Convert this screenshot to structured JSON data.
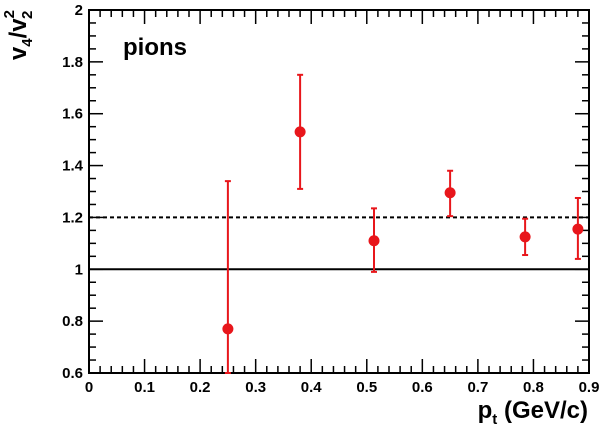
{
  "chart_data": {
    "type": "scatter",
    "annotation": "pions",
    "xlabel": {
      "main": "p",
      "sub": "t",
      "rest": " (GeV/c)"
    },
    "ylabel": {
      "a": "v",
      "a_sub": "4",
      "slash": "/",
      "b": "v",
      "b_sub": "2",
      "b_sup": "2"
    },
    "xlim": [
      0,
      0.9
    ],
    "ylim": [
      0.6,
      2.0
    ],
    "x_ticks": [
      {
        "value": 0,
        "label": "0"
      },
      {
        "value": 0.1,
        "label": "0.1"
      },
      {
        "value": 0.2,
        "label": "0.2"
      },
      {
        "value": 0.3,
        "label": "0.3"
      },
      {
        "value": 0.4,
        "label": "0.4"
      },
      {
        "value": 0.5,
        "label": "0.5"
      },
      {
        "value": 0.6,
        "label": "0.6"
      },
      {
        "value": 0.7,
        "label": "0.7"
      },
      {
        "value": 0.8,
        "label": "0.8"
      },
      {
        "value": 0.9,
        "label": "0.9"
      }
    ],
    "y_ticks": [
      {
        "value": 0.6,
        "label": "0.6"
      },
      {
        "value": 0.8,
        "label": "0.8"
      },
      {
        "value": 1.0,
        "label": "1"
      },
      {
        "value": 1.2,
        "label": "1.2"
      },
      {
        "value": 1.4,
        "label": "1.4"
      },
      {
        "value": 1.6,
        "label": "1.6"
      },
      {
        "value": 1.8,
        "label": "1.8"
      },
      {
        "value": 2.0,
        "label": "2"
      }
    ],
    "series": [
      {
        "color": "#e8161b",
        "points": [
          {
            "x": 0.25,
            "y": 0.77,
            "ylow": 0.6,
            "yhigh": 1.34
          },
          {
            "x": 0.38,
            "y": 1.53,
            "ylow": 1.31,
            "yhigh": 1.75
          },
          {
            "x": 0.513,
            "y": 1.11,
            "ylow": 0.99,
            "yhigh": 1.235
          },
          {
            "x": 0.65,
            "y": 1.295,
            "ylow": 1.205,
            "yhigh": 1.38
          },
          {
            "x": 0.785,
            "y": 1.125,
            "ylow": 1.055,
            "yhigh": 1.195
          },
          {
            "x": 0.88,
            "y": 1.155,
            "ylow": 1.04,
            "yhigh": 1.275
          }
        ]
      }
    ],
    "reference_lines": [
      {
        "y": 1.0,
        "style": "solid",
        "color": "#000000"
      },
      {
        "y": 1.2,
        "style": "dashed",
        "color": "#000000"
      }
    ],
    "grid": false,
    "legend": "none"
  }
}
